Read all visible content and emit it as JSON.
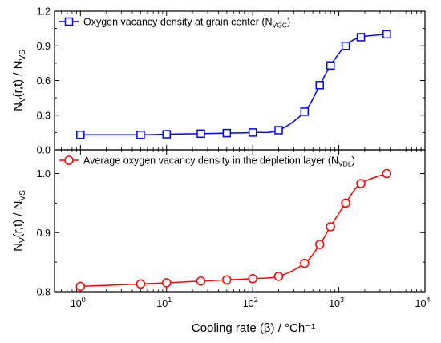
{
  "chart_data": [
    {
      "type": "line",
      "x_scale": "log",
      "xlim": [
        0.5,
        10000
      ],
      "ylim": [
        0.0,
        1.2
      ],
      "yticks": [
        "0.0",
        "0.3",
        "0.6",
        "0.9",
        "1.2"
      ],
      "ylabel": "N_V(r,t) / N_VS",
      "series": [
        {
          "name": "Oxygen vacancy density at grain center (N_VGC)",
          "legend_main": "Oxygen vacancy density at grain center (N",
          "legend_sub": "VGC",
          "legend_close": ")",
          "color": "#0000ff",
          "marker": "square",
          "x": [
            1,
            5,
            10,
            25,
            50,
            100,
            200,
            400,
            600,
            800,
            1200,
            1800,
            3600
          ],
          "y": [
            0.13,
            0.13,
            0.135,
            0.14,
            0.145,
            0.15,
            0.17,
            0.33,
            0.56,
            0.73,
            0.9,
            0.975,
            1.0
          ]
        }
      ]
    },
    {
      "type": "line",
      "x_scale": "log",
      "xlim": [
        0.5,
        10000
      ],
      "ylim": [
        0.8,
        1.04
      ],
      "yticks": [
        "0.8",
        "0.9",
        "1.0"
      ],
      "ylabel": "N_V(r,t) / N_VS",
      "xlabel": "Cooling rate (β) / °Ch⁻¹",
      "series": [
        {
          "name": "Average oxygen vacancy density in the depletion layer (N_VDL)",
          "legend_main": "Average oxygen vacancy density in the depletion layer (N",
          "legend_sub": "VDL",
          "legend_close": ")",
          "color": "#ff0000",
          "marker": "circle",
          "x": [
            1,
            5,
            10,
            25,
            50,
            100,
            200,
            400,
            600,
            800,
            1200,
            1800,
            3600
          ],
          "y": [
            0.809,
            0.813,
            0.815,
            0.818,
            0.82,
            0.822,
            0.826,
            0.848,
            0.88,
            0.91,
            0.95,
            0.983,
            1.0
          ]
        }
      ]
    }
  ],
  "x_ticks": [
    {
      "value": 1,
      "base": "10",
      "exp": "0"
    },
    {
      "value": 10,
      "base": "10",
      "exp": "1"
    },
    {
      "value": 100,
      "base": "10",
      "exp": "2"
    },
    {
      "value": 1000,
      "base": "10",
      "exp": "3"
    },
    {
      "value": 10000,
      "base": "10",
      "exp": "4"
    }
  ],
  "y_label_parts": {
    "n1": "N",
    "sub1": "V",
    "mid": "(r,t) / N",
    "sub2": "VS"
  },
  "x_label": "Cooling rate (β) / °Ch⁻¹"
}
